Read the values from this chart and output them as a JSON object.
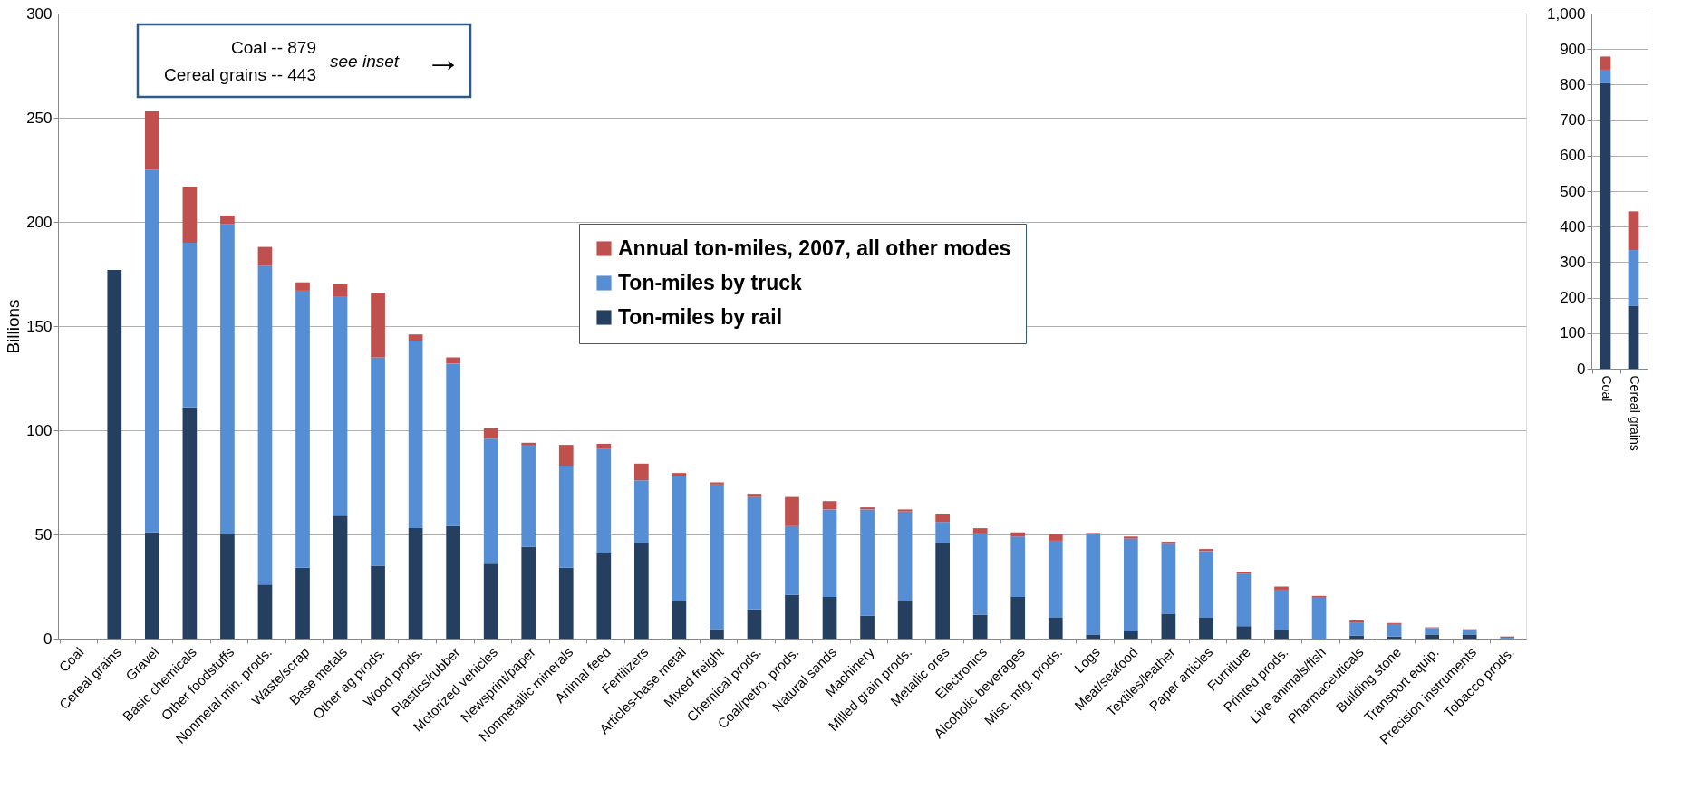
{
  "chart_data": [
    {
      "type": "bar",
      "stacked": true,
      "ylabel": "Billions",
      "ylim": [
        0,
        300
      ],
      "yticks": [
        0,
        50,
        100,
        150,
        200,
        250,
        300
      ],
      "grid": "y",
      "legend": "top",
      "categories": [
        "Coal",
        "Cereal grains",
        "Gravel",
        "Basic chemicals",
        "Other foodstuffs",
        "Nonmetal min. prods.",
        "Waste/scrap",
        "Base metals",
        "Other ag prods.",
        "Wood prods.",
        "Plastics/rubber",
        "Motorized vehicles",
        "Newsprint/paper",
        "Nonmetallic minerals",
        "Animal feed",
        "Fertilizers",
        "Articles-base metal",
        "Mixed freight",
        "Chemical prods.",
        "Coal/petro. prods.",
        "Natural sands",
        "Machinery",
        "Milled grain prods.",
        "Metallic ores",
        "Electronics",
        "Alcoholic beverages",
        "Misc. mfg. prods.",
        "Logs",
        "Meat/seafood",
        "Textiles/leather",
        "Paper articles",
        "Furniture",
        "Printed prods.",
        "Live animals/fish",
        "Pharmaceuticals",
        "Building stone",
        "Transport equip.",
        "Precision instruments",
        "Tobacco prods."
      ],
      "series": [
        {
          "name": "Ton-miles by rail",
          "color": "#243f60",
          "values": [
            null,
            177,
            51,
            111,
            50,
            26,
            34,
            59,
            35,
            53,
            54,
            36,
            44,
            34,
            41,
            46,
            18,
            4.5,
            14,
            21,
            20,
            11,
            18,
            46,
            11.5,
            20,
            10,
            2,
            3.5,
            12,
            10,
            6,
            4,
            0,
            1.5,
            1,
            2,
            2,
            0
          ]
        },
        {
          "name": "Ton-miles by truck",
          "color": "#558ed5",
          "values": [
            null,
            null,
            174,
            79,
            149,
            153,
            133,
            105,
            100,
            90,
            78,
            60,
            49,
            49,
            50,
            30,
            60,
            69.5,
            54,
            33,
            42,
            51,
            43,
            10,
            39,
            29,
            37,
            48,
            44.5,
            33.5,
            32,
            25,
            19.5,
            20,
            6,
            6,
            3,
            2,
            0.4
          ]
        },
        {
          "name": "Annual ton-miles, 2007, all other modes",
          "color": "#c0504d",
          "values": [
            null,
            null,
            28,
            27,
            4,
            9,
            4,
            6,
            31,
            3,
            3,
            5,
            1,
            10,
            2.5,
            8,
            1.5,
            1,
            1.5,
            14,
            4,
            1,
            1,
            4,
            2.5,
            2,
            3,
            0.7,
            1,
            1,
            1,
            1,
            1.5,
            0.5,
            1.2,
            0.5,
            0.4,
            0.5,
            0.6
          ]
        }
      ],
      "annotations": [
        "Coal -- 879",
        "Cereal grains -- 443",
        "see inset",
        "→"
      ]
    },
    {
      "type": "bar",
      "stacked": true,
      "ylim": [
        0,
        1000
      ],
      "yticks": [
        0,
        100,
        200,
        300,
        400,
        500,
        600,
        700,
        800,
        900,
        {
          "value": 1000,
          "label": "1,000"
        }
      ],
      "grid": "y",
      "categories": [
        "Coal",
        "Cereal grains"
      ],
      "series": [
        {
          "color": "#243f60",
          "values": [
            805,
            177
          ]
        },
        {
          "color": "#558ed5",
          "values": [
            37,
            157
          ]
        },
        {
          "color": "#c0504d",
          "values": [
            37,
            109
          ]
        }
      ]
    }
  ]
}
